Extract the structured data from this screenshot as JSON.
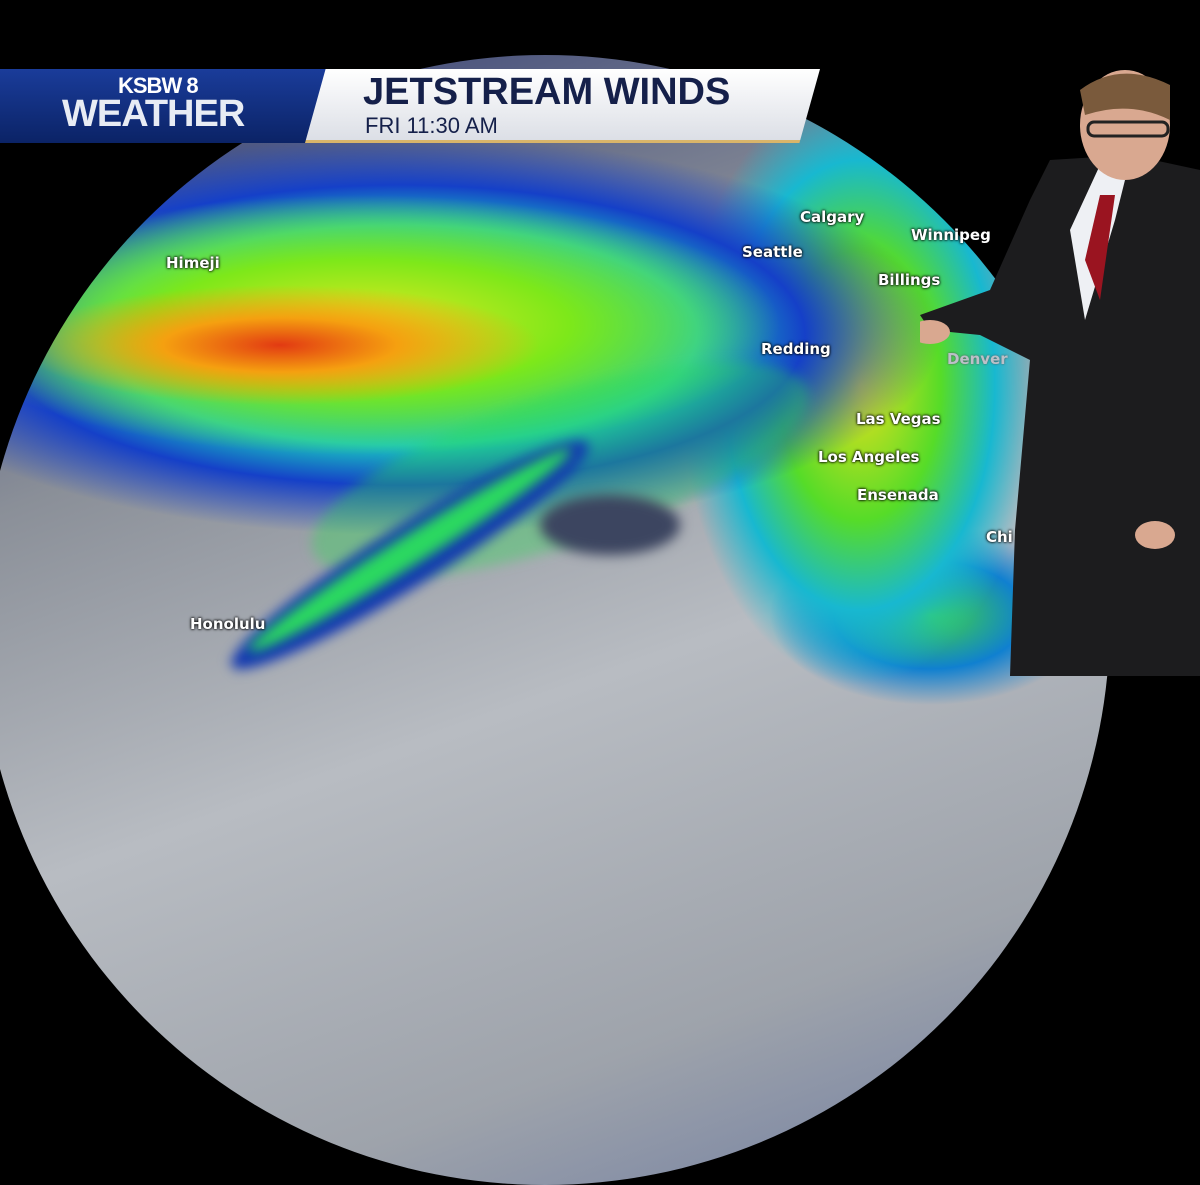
{
  "branding": {
    "station": "KSBW 8",
    "brand": "WEATHER"
  },
  "header": {
    "title": "JETSTREAM WINDS",
    "subtitle": "FRI 11:30 AM"
  },
  "map": {
    "cities": [
      "Himeji",
      "Honolulu",
      "Calgary",
      "Winnipeg",
      "Seattle",
      "Billings",
      "Redding",
      "Denver",
      "Las Vegas",
      "Los Angeles",
      "Ensenada",
      "Chi"
    ],
    "colors": {
      "strongest": "#e23a12",
      "strong": "#f5a010",
      "moderate": "#e8e820",
      "light": "#27d84a",
      "edge": "#1540c8",
      "calm": "#b8bcc2"
    }
  }
}
